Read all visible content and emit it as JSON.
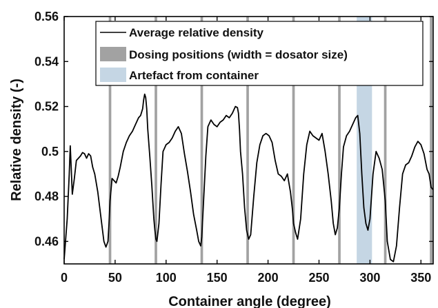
{
  "chart_data": {
    "type": "line",
    "xlabel": "Container angle (degree)",
    "ylabel": "Relative density (-)",
    "xlim": [
      0,
      362
    ],
    "ylim": [
      0.45,
      0.56
    ],
    "xticks": [
      0,
      50,
      100,
      150,
      200,
      250,
      300,
      350
    ],
    "yticks": [
      0.46,
      0.48,
      0.5,
      0.52,
      0.54,
      0.56
    ],
    "xtick_labels": [
      "0",
      "50",
      "100",
      "150",
      "200",
      "250",
      "300",
      "350"
    ],
    "ytick_labels": [
      "0.46",
      "0.48",
      "0.5",
      "0.52",
      "0.54",
      "0.56"
    ],
    "grid": false,
    "legend_position": "top-right",
    "series": [
      {
        "name": "Average relative density",
        "color": "#000000",
        "x": [
          0,
          1,
          3,
          5,
          6,
          7,
          8,
          10,
          12,
          14,
          16,
          18,
          20,
          22,
          24,
          26,
          28,
          30,
          33,
          36,
          39,
          41,
          43,
          44,
          45,
          47,
          49,
          51,
          53,
          55,
          58,
          61,
          64,
          67,
          70,
          73,
          75,
          77,
          78,
          79,
          80,
          81,
          82,
          84,
          86,
          88,
          89,
          90,
          91,
          93,
          95,
          97,
          100,
          103,
          106,
          109,
          112,
          115,
          118,
          121,
          124,
          127,
          130,
          132,
          134,
          135,
          137,
          139,
          141,
          144,
          147,
          150,
          153,
          156,
          159,
          162,
          165,
          168,
          170,
          171,
          172,
          173,
          175,
          177,
          179,
          181,
          183,
          186,
          189,
          192,
          195,
          198,
          201,
          204,
          207,
          210,
          213,
          216,
          219,
          222,
          224,
          225,
          227,
          229,
          232,
          235,
          238,
          241,
          244,
          247,
          250,
          253,
          256,
          259,
          262,
          264,
          266,
          268,
          270,
          272,
          274,
          277,
          280,
          283,
          286,
          288,
          290,
          292,
          294,
          296,
          298,
          300,
          303,
          306,
          309,
          312,
          315,
          317,
          320,
          323,
          326,
          329,
          332,
          335,
          338,
          341,
          344,
          347,
          350,
          353,
          356,
          358,
          360,
          362
        ],
        "values": [
          0.452,
          0.458,
          0.47,
          0.49,
          0.5025,
          0.492,
          0.481,
          0.488,
          0.496,
          0.497,
          0.498,
          0.4995,
          0.499,
          0.497,
          0.499,
          0.498,
          0.493,
          0.49,
          0.482,
          0.471,
          0.46,
          0.4575,
          0.46,
          0.468,
          0.478,
          0.488,
          0.487,
          0.486,
          0.489,
          0.493,
          0.5,
          0.504,
          0.507,
          0.509,
          0.512,
          0.515,
          0.516,
          0.519,
          0.523,
          0.5255,
          0.524,
          0.519,
          0.51,
          0.498,
          0.485,
          0.47,
          0.465,
          0.461,
          0.46,
          0.468,
          0.485,
          0.5,
          0.503,
          0.504,
          0.506,
          0.509,
          0.511,
          0.508,
          0.499,
          0.491,
          0.482,
          0.472,
          0.465,
          0.46,
          0.458,
          0.462,
          0.48,
          0.498,
          0.511,
          0.514,
          0.512,
          0.511,
          0.513,
          0.514,
          0.516,
          0.515,
          0.517,
          0.52,
          0.5195,
          0.517,
          0.51,
          0.5,
          0.49,
          0.475,
          0.465,
          0.461,
          0.463,
          0.48,
          0.495,
          0.503,
          0.507,
          0.508,
          0.507,
          0.504,
          0.496,
          0.49,
          0.489,
          0.487,
          0.49,
          0.482,
          0.474,
          0.468,
          0.464,
          0.461,
          0.47,
          0.49,
          0.503,
          0.509,
          0.507,
          0.506,
          0.505,
          0.508,
          0.5,
          0.49,
          0.478,
          0.468,
          0.463,
          0.466,
          0.475,
          0.49,
          0.502,
          0.507,
          0.509,
          0.512,
          0.515,
          0.516,
          0.508,
          0.49,
          0.475,
          0.468,
          0.465,
          0.47,
          0.49,
          0.5,
          0.497,
          0.492,
          0.478,
          0.46,
          0.452,
          0.451,
          0.458,
          0.475,
          0.49,
          0.494,
          0.495,
          0.498,
          0.502,
          0.5045,
          0.503,
          0.499,
          0.492,
          0.49,
          0.484,
          0.483
        ]
      }
    ],
    "bands": [
      {
        "name": "Dosing positions (width = dosator size)",
        "color": "#a2a2a2",
        "centers": [
          45,
          90,
          135,
          180,
          225,
          270,
          315,
          360
        ],
        "width": 2.5
      },
      {
        "name": "Artefact from container",
        "color": "#c5d6e4",
        "ranges": [
          [
            287,
            302
          ]
        ]
      }
    ]
  }
}
